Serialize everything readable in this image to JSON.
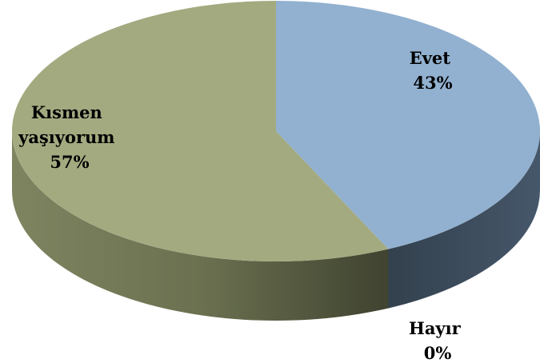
{
  "chart_data": {
    "type": "pie",
    "style": "3d",
    "title": "",
    "slices": [
      {
        "label_lines": [
          "Evet"
        ],
        "value": 43,
        "percent_label": "43%",
        "color": "#92B1D0",
        "side_color": "#3C4A58"
      },
      {
        "label_lines": [
          "Hayır"
        ],
        "value": 0,
        "percent_label": "0%",
        "color": "#C0504D",
        "side_color": "#7A2E2C"
      },
      {
        "label_lines": [
          "Kısmen",
          "yaşıyorum"
        ],
        "value": 57,
        "percent_label": "57%",
        "color": "#A4AA80",
        "side_color": "#5F6444"
      }
    ]
  }
}
